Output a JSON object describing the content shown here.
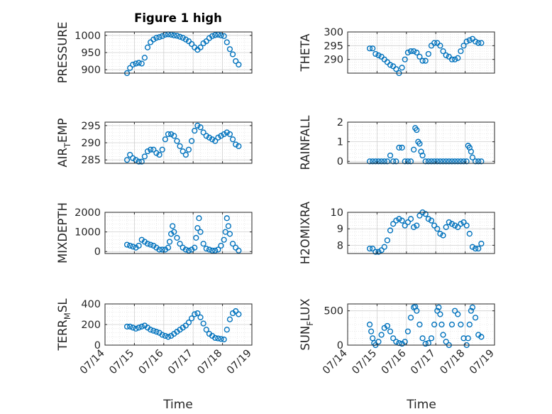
{
  "figure": {
    "title": "Figure 1 high",
    "xlabel": "Time"
  },
  "colors": {
    "marker": "#0072BD",
    "axis": "#262626",
    "grid": "#dcdcdc"
  },
  "x_ticks": [
    "07/14",
    "07/15",
    "07/16",
    "07/17",
    "07/18",
    "07/19"
  ],
  "chart_data": [
    {
      "type": "scatter",
      "ylabel": "PRESSURE",
      "ylabel_sub": "",
      "ylabel_tail": "",
      "ylim": [
        890,
        1010
      ],
      "yticks": [
        900,
        950,
        1000
      ],
      "xlim": [
        0,
        5
      ],
      "grid": true,
      "x": [
        0.75,
        0.85,
        0.95,
        1.05,
        1.15,
        1.25,
        1.35,
        1.45,
        1.55,
        1.65,
        1.75,
        1.85,
        1.95,
        2.05,
        2.15,
        2.25,
        2.35,
        2.45,
        2.55,
        2.65,
        2.75,
        2.85,
        2.95,
        3.05,
        3.15,
        3.25,
        3.35,
        3.45,
        3.55,
        3.65,
        3.75,
        3.85,
        3.95,
        4.05,
        4.15,
        4.25,
        4.35,
        4.45,
        4.55
      ],
      "y": [
        890,
        905,
        915,
        918,
        920,
        918,
        935,
        965,
        980,
        988,
        993,
        995,
        998,
        1002,
        1003,
        1002,
        1000,
        999,
        996,
        993,
        988,
        983,
        975,
        965,
        958,
        965,
        977,
        983,
        992,
        998,
        1001,
        1002,
        1000,
        998,
        980,
        960,
        945,
        925,
        915
      ]
    },
    {
      "type": "scatter",
      "ylabel": "THETA",
      "ylabel_sub": "",
      "ylabel_tail": "",
      "ylim": [
        285,
        300
      ],
      "yticks": [
        290,
        295,
        300
      ],
      "xlim": [
        0,
        5
      ],
      "grid": true,
      "x": [
        0.75,
        0.85,
        0.95,
        1.05,
        1.15,
        1.25,
        1.35,
        1.45,
        1.55,
        1.65,
        1.75,
        1.85,
        1.95,
        2.05,
        2.15,
        2.25,
        2.35,
        2.45,
        2.55,
        2.65,
        2.75,
        2.85,
        2.95,
        3.05,
        3.15,
        3.25,
        3.35,
        3.45,
        3.55,
        3.65,
        3.75,
        3.85,
        3.95,
        4.05,
        4.15,
        4.25,
        4.35,
        4.45,
        4.55
      ],
      "y": [
        294,
        294,
        292,
        291.5,
        291,
        290,
        289,
        288,
        287.5,
        286.5,
        285,
        287,
        290,
        292.5,
        293,
        293,
        292.5,
        291,
        289.5,
        289.5,
        292,
        295,
        296,
        296,
        295,
        293,
        291.5,
        291,
        290,
        290,
        290.5,
        293,
        295,
        296.5,
        297,
        297.5,
        296.5,
        296,
        296
      ]
    },
    {
      "type": "scatter",
      "ylabel": "AIR",
      "ylabel_sub": "T",
      "ylabel_tail": "EMP",
      "ylim": [
        284,
        296
      ],
      "yticks": [
        285,
        290,
        295
      ],
      "xlim": [
        0,
        5
      ],
      "grid": true,
      "x": [
        0.75,
        0.85,
        0.95,
        1.05,
        1.15,
        1.25,
        1.35,
        1.45,
        1.55,
        1.65,
        1.75,
        1.85,
        1.95,
        2.05,
        2.15,
        2.25,
        2.35,
        2.45,
        2.55,
        2.65,
        2.75,
        2.85,
        2.95,
        3.05,
        3.15,
        3.25,
        3.35,
        3.45,
        3.55,
        3.65,
        3.75,
        3.85,
        3.95,
        4.05,
        4.15,
        4.25,
        4.35,
        4.45,
        4.55
      ],
      "y": [
        285,
        286.5,
        285.5,
        285,
        284.5,
        284.5,
        286,
        287.5,
        288,
        288,
        287,
        286.5,
        288,
        291,
        292.5,
        292.5,
        292,
        290.5,
        289,
        287.5,
        286.5,
        288,
        290.5,
        293.5,
        295,
        294.5,
        293,
        292,
        291.5,
        291,
        290.5,
        291.5,
        292,
        292.5,
        293,
        292.5,
        291,
        289.5,
        289
      ]
    },
    {
      "type": "scatter",
      "ylabel": "RAINFALL",
      "ylabel_sub": "",
      "ylabel_tail": "",
      "ylim": [
        -0.1,
        2
      ],
      "yticks": [
        0,
        1,
        2
      ],
      "xlim": [
        0,
        5
      ],
      "grid": true,
      "x": [
        0.75,
        0.85,
        0.95,
        1.05,
        1.15,
        1.25,
        1.35,
        1.45,
        1.55,
        1.65,
        1.75,
        1.85,
        1.95,
        2.05,
        2.15,
        2.25,
        2.3,
        2.35,
        2.4,
        2.45,
        2.5,
        2.55,
        2.65,
        2.75,
        2.85,
        2.95,
        3.05,
        3.15,
        3.25,
        3.35,
        3.45,
        3.55,
        3.65,
        3.75,
        3.85,
        3.95,
        4.05,
        4.1,
        4.15,
        4.2,
        4.25,
        4.35,
        4.45,
        4.55
      ],
      "y": [
        0,
        0,
        0,
        0,
        0,
        0,
        0,
        0.3,
        0,
        0,
        0.7,
        0.7,
        0,
        0,
        0,
        0.6,
        1.7,
        1.6,
        1.0,
        0.9,
        0.5,
        0.3,
        0,
        0,
        0,
        0,
        0,
        0,
        0,
        0,
        0,
        0,
        0,
        0,
        0,
        0,
        0,
        0.8,
        0.7,
        0.5,
        0.2,
        0,
        0,
        0
      ]
    },
    {
      "type": "scatter",
      "ylabel": "MIXDEPTH",
      "ylabel_sub": "",
      "ylabel_tail": "",
      "ylim": [
        -100,
        2000
      ],
      "yticks": [
        0,
        1000,
        2000
      ],
      "xlim": [
        0,
        5
      ],
      "grid": true,
      "x": [
        0.75,
        0.85,
        0.95,
        1.05,
        1.15,
        1.25,
        1.35,
        1.45,
        1.55,
        1.65,
        1.75,
        1.85,
        1.95,
        2.05,
        2.15,
        2.2,
        2.25,
        2.3,
        2.35,
        2.45,
        2.55,
        2.65,
        2.75,
        2.85,
        2.95,
        3.05,
        3.1,
        3.15,
        3.2,
        3.25,
        3.35,
        3.45,
        3.55,
        3.65,
        3.75,
        3.85,
        3.95,
        4.05,
        4.1,
        4.15,
        4.2,
        4.25,
        4.35,
        4.45,
        4.55
      ],
      "y": [
        350,
        300,
        250,
        200,
        300,
        600,
        500,
        400,
        350,
        300,
        200,
        100,
        100,
        100,
        200,
        500,
        900,
        1300,
        1000,
        700,
        400,
        200,
        100,
        50,
        100,
        200,
        700,
        1200,
        1700,
        1000,
        400,
        150,
        100,
        50,
        50,
        100,
        300,
        600,
        1000,
        1700,
        1300,
        900,
        400,
        200,
        50
      ]
    },
    {
      "type": "scatter",
      "ylabel": "H2OMIXRA",
      "ylabel_sub": "",
      "ylabel_tail": "",
      "ylim": [
        7.5,
        10
      ],
      "yticks": [
        8,
        9,
        10
      ],
      "xlim": [
        0,
        5
      ],
      "grid": true,
      "x": [
        0.75,
        0.85,
        0.95,
        1.05,
        1.15,
        1.25,
        1.35,
        1.45,
        1.55,
        1.65,
        1.75,
        1.85,
        1.95,
        2.05,
        2.15,
        2.25,
        2.35,
        2.45,
        2.55,
        2.65,
        2.75,
        2.85,
        2.95,
        3.05,
        3.15,
        3.25,
        3.35,
        3.45,
        3.55,
        3.65,
        3.75,
        3.85,
        3.95,
        4.05,
        4.15,
        4.25,
        4.35,
        4.45,
        4.55
      ],
      "y": [
        7.8,
        7.8,
        7.6,
        7.6,
        7.7,
        7.9,
        8.3,
        8.9,
        9.3,
        9.5,
        9.6,
        9.5,
        9.2,
        9.4,
        9.6,
        9.1,
        9.2,
        9.8,
        10.0,
        9.9,
        9.6,
        9.5,
        9.2,
        9.0,
        8.7,
        8.6,
        9.1,
        9.4,
        9.3,
        9.2,
        9.1,
        9.3,
        9.4,
        9.2,
        8.7,
        7.9,
        7.8,
        7.8,
        8.1
      ]
    },
    {
      "type": "scatter",
      "ylabel": "TERR",
      "ylabel_sub": "M",
      "ylabel_tail": "SL",
      "ylim": [
        0,
        400
      ],
      "yticks": [
        0,
        200,
        400
      ],
      "xlim": [
        0,
        5
      ],
      "grid": true,
      "x": [
        0.75,
        0.85,
        0.95,
        1.05,
        1.15,
        1.25,
        1.35,
        1.45,
        1.55,
        1.65,
        1.75,
        1.85,
        1.95,
        2.05,
        2.15,
        2.25,
        2.35,
        2.45,
        2.55,
        2.65,
        2.75,
        2.85,
        2.95,
        3.05,
        3.15,
        3.25,
        3.35,
        3.45,
        3.55,
        3.65,
        3.75,
        3.85,
        3.95,
        4.05,
        4.15,
        4.25,
        4.35,
        4.45,
        4.55
      ],
      "y": [
        180,
        180,
        170,
        160,
        170,
        180,
        190,
        170,
        150,
        140,
        130,
        120,
        100,
        90,
        80,
        90,
        110,
        130,
        150,
        170,
        190,
        220,
        260,
        300,
        310,
        270,
        210,
        150,
        110,
        90,
        70,
        65,
        60,
        55,
        150,
        250,
        310,
        330,
        300
      ]
    },
    {
      "type": "scatter",
      "ylabel": "SUN",
      "ylabel_sub": "F",
      "ylabel_tail": "LUX",
      "ylim": [
        0,
        600
      ],
      "yticks": [
        0,
        500
      ],
      "xlim": [
        0,
        5
      ],
      "grid": true,
      "x": [
        0.75,
        0.8,
        0.85,
        0.9,
        0.95,
        1.05,
        1.15,
        1.25,
        1.35,
        1.45,
        1.55,
        1.65,
        1.75,
        1.85,
        1.95,
        2.05,
        2.15,
        2.25,
        2.3,
        2.35,
        2.45,
        2.55,
        2.65,
        2.75,
        2.85,
        2.95,
        3.05,
        3.1,
        3.15,
        3.2,
        3.25,
        3.35,
        3.45,
        3.55,
        3.65,
        3.75,
        3.85,
        3.95,
        4.05,
        4.1,
        4.15,
        4.2,
        4.25,
        4.35,
        4.45,
        4.55
      ],
      "y": [
        300,
        200,
        100,
        30,
        0,
        50,
        150,
        250,
        280,
        200,
        100,
        50,
        30,
        20,
        50,
        200,
        400,
        550,
        560,
        500,
        300,
        100,
        20,
        30,
        100,
        300,
        500,
        550,
        450,
        300,
        150,
        50,
        0,
        300,
        500,
        450,
        300,
        100,
        0,
        100,
        300,
        500,
        550,
        400,
        150,
        120
      ]
    }
  ]
}
